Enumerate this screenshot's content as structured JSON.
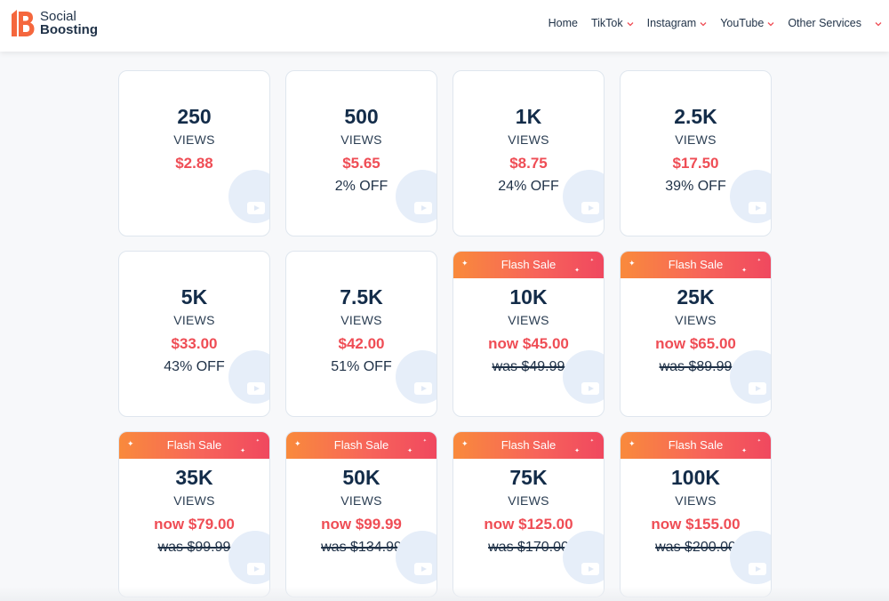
{
  "brand": {
    "line1": "Social",
    "line2": "Boosting",
    "accent": "#f5673d"
  },
  "nav": [
    {
      "label": "Home",
      "dropdown": false
    },
    {
      "label": "TikTok",
      "dropdown": true
    },
    {
      "label": "Instagram",
      "dropdown": true
    },
    {
      "label": "YouTube",
      "dropdown": true
    },
    {
      "label": "Other Services",
      "dropdown": true
    }
  ],
  "packages": [
    {
      "amount": "250",
      "unit": "VIEWS",
      "price": "$2.88",
      "note": "",
      "flash": "",
      "note_strike": false
    },
    {
      "amount": "500",
      "unit": "VIEWS",
      "price": "$5.65",
      "note": "2% OFF",
      "flash": "",
      "note_strike": false
    },
    {
      "amount": "1K",
      "unit": "VIEWS",
      "price": "$8.75",
      "note": "24% OFF",
      "flash": "",
      "note_strike": false
    },
    {
      "amount": "2.5K",
      "unit": "VIEWS",
      "price": "$17.50",
      "note": "39% OFF",
      "flash": "",
      "note_strike": false
    },
    {
      "amount": "5K",
      "unit": "VIEWS",
      "price": "$33.00",
      "note": "43% OFF",
      "flash": "",
      "note_strike": false
    },
    {
      "amount": "7.5K",
      "unit": "VIEWS",
      "price": "$42.00",
      "note": "51% OFF",
      "flash": "",
      "note_strike": false
    },
    {
      "amount": "10K",
      "unit": "VIEWS",
      "price": "now $45.00",
      "note": "was $49.99",
      "flash": "Flash Sale",
      "note_strike": true
    },
    {
      "amount": "25K",
      "unit": "VIEWS",
      "price": "now $65.00",
      "note": "was $89.99",
      "flash": "Flash Sale",
      "note_strike": true
    },
    {
      "amount": "35K",
      "unit": "VIEWS",
      "price": "now $79.00",
      "note": "was $99.99",
      "flash": "Flash Sale",
      "note_strike": true
    },
    {
      "amount": "50K",
      "unit": "VIEWS",
      "price": "now $99.99",
      "note": "was $134.99",
      "flash": "Flash Sale",
      "note_strike": true
    },
    {
      "amount": "75K",
      "unit": "VIEWS",
      "price": "now $125.00",
      "note": "was $170.00",
      "flash": "Flash Sale",
      "note_strike": true
    },
    {
      "amount": "100K",
      "unit": "VIEWS",
      "price": "now $155.00",
      "note": "was $200.00",
      "flash": "Flash Sale",
      "note_strike": true
    }
  ],
  "colors": {
    "price": "#ef4d55",
    "heading": "#132c49",
    "flash_gradient_start": "#f98a3c",
    "flash_gradient_end": "#f0485f"
  },
  "icons": {
    "card_watermark": "youtube-play-icon",
    "nav_dropdown": "chevron-down-icon"
  }
}
